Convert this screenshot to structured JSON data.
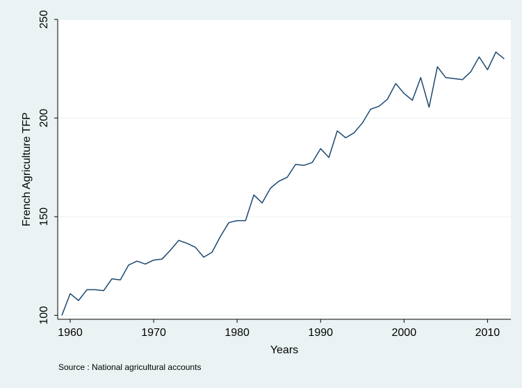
{
  "chart_data": {
    "type": "line",
    "title": "",
    "xlabel": "Years",
    "ylabel": "French Agriculture TFP",
    "note": "Source : National agricultural accounts",
    "xlim": [
      1958.5,
      2012.8
    ],
    "ylim": [
      98,
      250
    ],
    "xticks": [
      1960,
      1970,
      1980,
      1990,
      2000,
      2010
    ],
    "yticks": [
      100,
      150,
      200,
      250
    ],
    "grid": true,
    "legend": "none",
    "colors": {
      "line": "#1a476f",
      "background": "#eaf2f3",
      "plot_area": "#ffffff",
      "grid": "#eaf2f3"
    },
    "series": [
      {
        "x": [
          1959,
          1960,
          1961,
          1962,
          1963,
          1964,
          1965,
          1966,
          1967,
          1968,
          1969,
          1970,
          1971,
          1972,
          1973,
          1974,
          1975,
          1976,
          1977,
          1978,
          1979,
          1980,
          1981,
          1982,
          1983,
          1984,
          1985,
          1986,
          1987,
          1988,
          1989,
          1990,
          1991,
          1992,
          1993,
          1994,
          1995,
          1996,
          1997,
          1998,
          1999,
          2000,
          2001,
          2002,
          2003,
          2004,
          2005,
          2006,
          2007,
          2008,
          2009,
          2010,
          2011,
          2012
        ],
        "values": [
          100,
          111,
          107.5,
          113,
          113,
          112.5,
          118.5,
          118,
          125.5,
          127.5,
          126,
          128,
          128.5,
          133,
          138,
          136.5,
          134.5,
          129.5,
          132,
          140,
          147,
          148,
          148,
          161,
          157,
          164.5,
          168,
          170,
          176.5,
          176,
          177.5,
          184.5,
          180,
          193.5,
          190,
          192.5,
          197.5,
          204.5,
          206,
          209.5,
          217.5,
          212.5,
          209,
          220.5,
          205.5,
          226,
          220.5,
          220,
          219.5,
          223.5,
          231,
          224.5,
          233.5,
          230
        ]
      }
    ]
  }
}
